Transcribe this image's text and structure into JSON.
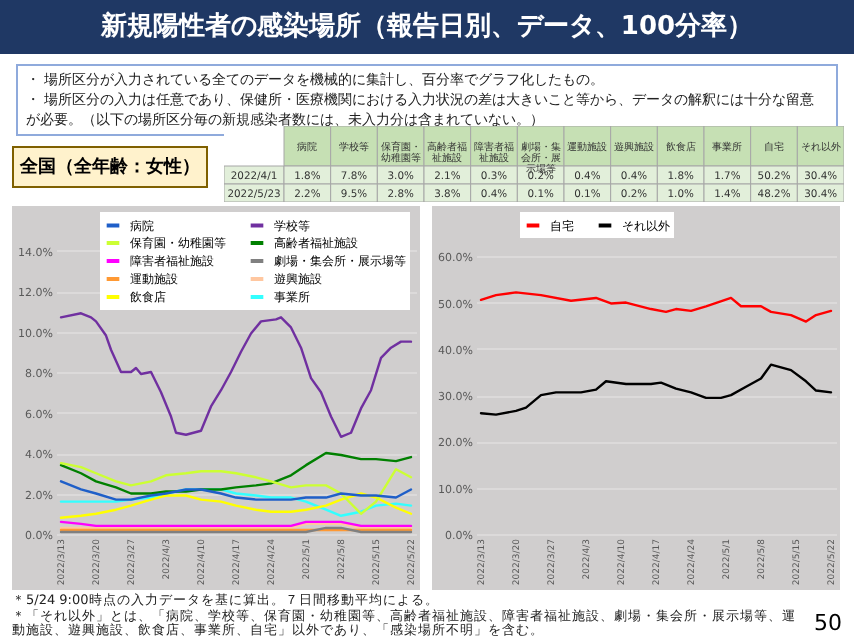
{
  "chart_data": [
    {
      "type": "other",
      "title": "新規陽性者の感染場所（報告日別、データ、100分率）",
      "annotations": [
        "・ 場所区分が入力されている全てのデータを機械的に集計し、百分率でグラフ化したもの。",
        "・ 場所区分の入力は任意であり、保健所・医療機関における入力状況の差は大きいこと等から、データの解釈には十分な留意が必要。（以下の場所区分毎の新規感染者数には、未入力分は含まれていない。）",
        "全国（全年齢：女性）"
      ],
      "categories": [
        "病院",
        "学校等",
        "保育園・幼稚園等",
        "高齢者福祉施設",
        "障害者福祉施設",
        "劇場・集会所・展示場等",
        "運動施設",
        "遊興施設",
        "飲食店",
        "事業所",
        "自宅",
        "それ以外"
      ],
      "y_categories": [
        "2022/4/1",
        "2022/5/23"
      ],
      "cell_labels": [
        [
          "1.8%",
          "7.8%",
          "3.0%",
          "2.1%",
          "0.3%",
          "0.2%",
          "0.4%",
          "0.4%",
          "1.8%",
          "1.7%",
          "50.2%",
          "30.4%"
        ],
        [
          "2.2%",
          "9.5%",
          "2.8%",
          "3.8%",
          "0.4%",
          "0.1%",
          "0.1%",
          "0.2%",
          "1.0%",
          "1.4%",
          "48.2%",
          "30.4%"
        ]
      ]
    },
    {
      "type": "line",
      "annotations": [
        "＊5/24 9:00時点の入力データを基に算出。７日間移動平均による。",
        "＊「それ以外」とは、「病院、学校等、保育園・幼稚園等、高齢者福祉施設、障害者福祉施設、劇場・集会所・展示場等、運動施設、遊興施設、飲食店、事業所、自宅」以外であり、「感染場所不明」を含む。"
      ],
      "x": [
        "2022-03-13",
        "2022-03-17",
        "2022-03-20",
        "2022-03-24",
        "2022-03-27",
        "2022-03-31",
        "2022-04-03",
        "2022-04-07",
        "2022-04-10",
        "2022-04-14",
        "2022-04-17",
        "2022-04-21",
        "2022-04-24",
        "2022-04-28",
        "2022-05-01",
        "2022-05-05",
        "2022-05-08",
        "2022-05-12",
        "2022-05-15",
        "2022-05-19",
        "2022-05-22"
      ],
      "xlim": [
        "2022-03-12",
        "2022-05-23"
      ],
      "xticks": [
        {
          "value": "2022-03-13",
          "label": "2022/3/13"
        },
        {
          "value": "2022-03-20",
          "label": "2022/3/20"
        },
        {
          "value": "2022-03-27",
          "label": "2022/3/27"
        },
        {
          "value": "2022-04-03",
          "label": "2022/4/3"
        },
        {
          "value": "2022-04-10",
          "label": "2022/4/10"
        },
        {
          "value": "2022-04-17",
          "label": "2022/4/17"
        },
        {
          "value": "2022-04-24",
          "label": "2022/4/24"
        },
        {
          "value": "2022-05-01",
          "label": "2022/5/1"
        },
        {
          "value": "2022-05-08",
          "label": "2022/5/8"
        },
        {
          "value": "2022-05-15",
          "label": "2022/5/15"
        },
        {
          "value": "2022-05-22",
          "label": "2022/5/22"
        }
      ],
      "ylim": [
        0,
        16
      ],
      "yticks": [
        {
          "value": 0,
          "label": "0.0%"
        },
        {
          "value": 2,
          "label": "2.0%"
        },
        {
          "value": 4,
          "label": "4.0%"
        },
        {
          "value": 6,
          "label": "6.0%"
        },
        {
          "value": 8,
          "label": "8.0%"
        },
        {
          "value": 10,
          "label": "10.0%"
        },
        {
          "value": 12,
          "label": "12.0%"
        },
        {
          "value": 14,
          "label": "14.0%"
        }
      ],
      "grid": "y",
      "legend": "top",
      "series": [
        {
          "name": "病院",
          "color": "#1f5fc8",
          "values": [
            2.6,
            2.2,
            2.0,
            1.7,
            1.7,
            1.9,
            2.0,
            2.2,
            2.2,
            2.0,
            1.8,
            1.7,
            1.7,
            1.7,
            1.8,
            1.8,
            2.0,
            1.9,
            1.9,
            1.8,
            2.2
          ]
        },
        {
          "name": "学校等",
          "color": "#7030a0",
          "x": [
            "2022-03-13",
            "2022-03-17",
            "2022-03-19",
            "2022-03-20",
            "2022-03-22",
            "2022-03-23",
            "2022-03-25",
            "2022-03-27",
            "2022-03-28",
            "2022-03-29",
            "2022-03-31",
            "2022-04-02",
            "2022-04-04",
            "2022-04-05",
            "2022-04-07",
            "2022-04-10",
            "2022-04-12",
            "2022-04-14",
            "2022-04-16",
            "2022-04-18",
            "2022-04-20",
            "2022-04-22",
            "2022-04-25",
            "2022-04-26",
            "2022-04-28",
            "2022-04-30",
            "2022-05-02",
            "2022-05-04",
            "2022-05-06",
            "2022-05-08",
            "2022-05-10",
            "2022-05-12",
            "2022-05-14",
            "2022-05-16",
            "2022-05-18",
            "2022-05-20",
            "2022-05-22"
          ],
          "values": [
            10.7,
            10.9,
            10.7,
            10.5,
            9.8,
            9.1,
            8.0,
            8.0,
            8.2,
            7.9,
            8.0,
            7.0,
            5.8,
            5.0,
            4.9,
            5.1,
            6.3,
            7.1,
            8.0,
            9.0,
            9.9,
            10.5,
            10.6,
            10.7,
            10.2,
            9.2,
            7.7,
            7.0,
            5.8,
            4.8,
            5.0,
            6.2,
            7.1,
            8.7,
            9.2,
            9.5,
            9.5
          ]
        },
        {
          "name": "保育園・幼稚園等",
          "color": "#ccff33",
          "values": [
            3.5,
            3.3,
            3.0,
            2.6,
            2.4,
            2.6,
            2.9,
            3.0,
            3.1,
            3.1,
            3.0,
            2.8,
            2.6,
            2.3,
            2.4,
            2.4,
            2.0,
            1.0,
            1.6,
            3.2,
            2.8
          ]
        },
        {
          "name": "高齢者福祉施設",
          "color": "#008000",
          "values": [
            3.4,
            3.0,
            2.6,
            2.3,
            2.0,
            2.0,
            2.1,
            2.1,
            2.2,
            2.2,
            2.3,
            2.4,
            2.5,
            2.9,
            3.4,
            4.0,
            3.9,
            3.7,
            3.7,
            3.6,
            3.8
          ]
        },
        {
          "name": "障害者福祉施設",
          "color": "#ff00ff",
          "values": [
            0.6,
            0.5,
            0.4,
            0.4,
            0.4,
            0.4,
            0.4,
            0.4,
            0.4,
            0.4,
            0.4,
            0.4,
            0.4,
            0.4,
            0.6,
            0.6,
            0.6,
            0.4,
            0.4,
            0.4,
            0.4
          ]
        },
        {
          "name": "劇場・集会所・展示場等",
          "color": "#808080",
          "values": [
            0.1,
            0.1,
            0.1,
            0.1,
            0.1,
            0.1,
            0.1,
            0.1,
            0.1,
            0.1,
            0.1,
            0.1,
            0.1,
            0.1,
            0.1,
            0.3,
            0.3,
            0.1,
            0.1,
            0.1,
            0.1
          ]
        },
        {
          "name": "運動施設",
          "color": "#ff9933",
          "values": [
            0.2,
            0.2,
            0.2,
            0.2,
            0.2,
            0.2,
            0.2,
            0.2,
            0.2,
            0.2,
            0.2,
            0.2,
            0.2,
            0.2,
            0.2,
            0.2,
            0.2,
            0.2,
            0.2,
            0.2,
            0.2
          ]
        },
        {
          "name": "遊興施設",
          "color": "#ffc7a0",
          "values": [
            0.3,
            0.3,
            0.3,
            0.3,
            0.3,
            0.3,
            0.3,
            0.3,
            0.3,
            0.3,
            0.3,
            0.3,
            0.3,
            0.3,
            0.5,
            0.5,
            0.5,
            0.3,
            0.3,
            0.3,
            0.3
          ]
        },
        {
          "name": "飲食店",
          "color": "#ffff00",
          "values": [
            0.8,
            0.9,
            1.0,
            1.2,
            1.4,
            1.7,
            1.9,
            1.9,
            1.7,
            1.6,
            1.4,
            1.2,
            1.1,
            1.1,
            1.2,
            1.4,
            1.7,
            2.0,
            1.8,
            1.3,
            1.0
          ]
        },
        {
          "name": "事業所",
          "color": "#33ffff",
          "values": [
            1.6,
            1.6,
            1.6,
            1.6,
            1.7,
            1.8,
            2.0,
            2.2,
            2.2,
            2.2,
            2.0,
            1.9,
            1.8,
            1.8,
            1.6,
            1.2,
            0.9,
            1.1,
            1.4,
            1.5,
            1.4
          ]
        }
      ]
    },
    {
      "type": "line",
      "annotations": [
        "50"
      ],
      "xlim": [
        "2022-03-12",
        "2022-05-23"
      ],
      "xticks": [
        {
          "value": "2022-03-13",
          "label": "2022/3/13"
        },
        {
          "value": "2022-03-20",
          "label": "2022/3/20"
        },
        {
          "value": "2022-03-27",
          "label": "2022/3/27"
        },
        {
          "value": "2022-04-03",
          "label": "2022/4/3"
        },
        {
          "value": "2022-04-10",
          "label": "2022/4/10"
        },
        {
          "value": "2022-04-17",
          "label": "2022/4/17"
        },
        {
          "value": "2022-04-24",
          "label": "2022/4/24"
        },
        {
          "value": "2022-05-01",
          "label": "2022/5/1"
        },
        {
          "value": "2022-05-08",
          "label": "2022/5/8"
        },
        {
          "value": "2022-05-15",
          "label": "2022/5/15"
        },
        {
          "value": "2022-05-22",
          "label": "2022/5/22"
        }
      ],
      "ylim": [
        0,
        70
      ],
      "yticks": [
        {
          "value": 0,
          "label": "0.0%"
        },
        {
          "value": 10,
          "label": "10.0%"
        },
        {
          "value": 20,
          "label": "20.0%"
        },
        {
          "value": 30,
          "label": "30.0%"
        },
        {
          "value": 40,
          "label": "40.0%"
        },
        {
          "value": 50,
          "label": "50.0%"
        },
        {
          "value": 60,
          "label": "60.0%"
        }
      ],
      "grid": "y",
      "legend": "top",
      "series": [
        {
          "name": "自宅",
          "color": "#ff0000",
          "x": [
            "2022-03-13",
            "2022-03-16",
            "2022-03-20",
            "2022-03-25",
            "2022-03-31",
            "2022-04-05",
            "2022-04-08",
            "2022-04-11",
            "2022-04-16",
            "2022-04-19",
            "2022-04-21",
            "2022-04-24",
            "2022-04-27",
            "2022-05-02",
            "2022-05-04",
            "2022-05-08",
            "2022-05-10",
            "2022-05-14",
            "2022-05-17",
            "2022-05-19",
            "2022-05-22"
          ],
          "values": [
            50.6,
            51.6,
            52.2,
            51.6,
            50.4,
            51.0,
            49.8,
            50.0,
            48.6,
            48.0,
            48.6,
            48.2,
            49.2,
            51.0,
            49.2,
            49.2,
            48.0,
            47.3,
            45.9,
            47.3,
            48.2
          ]
        },
        {
          "name": "それ以外",
          "color": "#000000",
          "x": [
            "2022-03-13",
            "2022-03-16",
            "2022-03-20",
            "2022-03-22",
            "2022-03-25",
            "2022-03-28",
            "2022-04-02",
            "2022-04-05",
            "2022-04-07",
            "2022-04-11",
            "2022-04-16",
            "2022-04-18",
            "2022-04-21",
            "2022-04-24",
            "2022-04-27",
            "2022-04-30",
            "2022-05-02",
            "2022-05-05",
            "2022-05-08",
            "2022-05-10",
            "2022-05-14",
            "2022-05-17",
            "2022-05-19",
            "2022-05-22"
          ],
          "values": [
            26.1,
            25.8,
            26.6,
            27.3,
            30.0,
            30.6,
            30.6,
            31.2,
            33.0,
            32.4,
            32.4,
            32.7,
            31.4,
            30.6,
            29.4,
            29.4,
            30.0,
            31.8,
            33.6,
            36.6,
            35.4,
            33.0,
            31.0,
            30.6
          ]
        }
      ]
    }
  ]
}
